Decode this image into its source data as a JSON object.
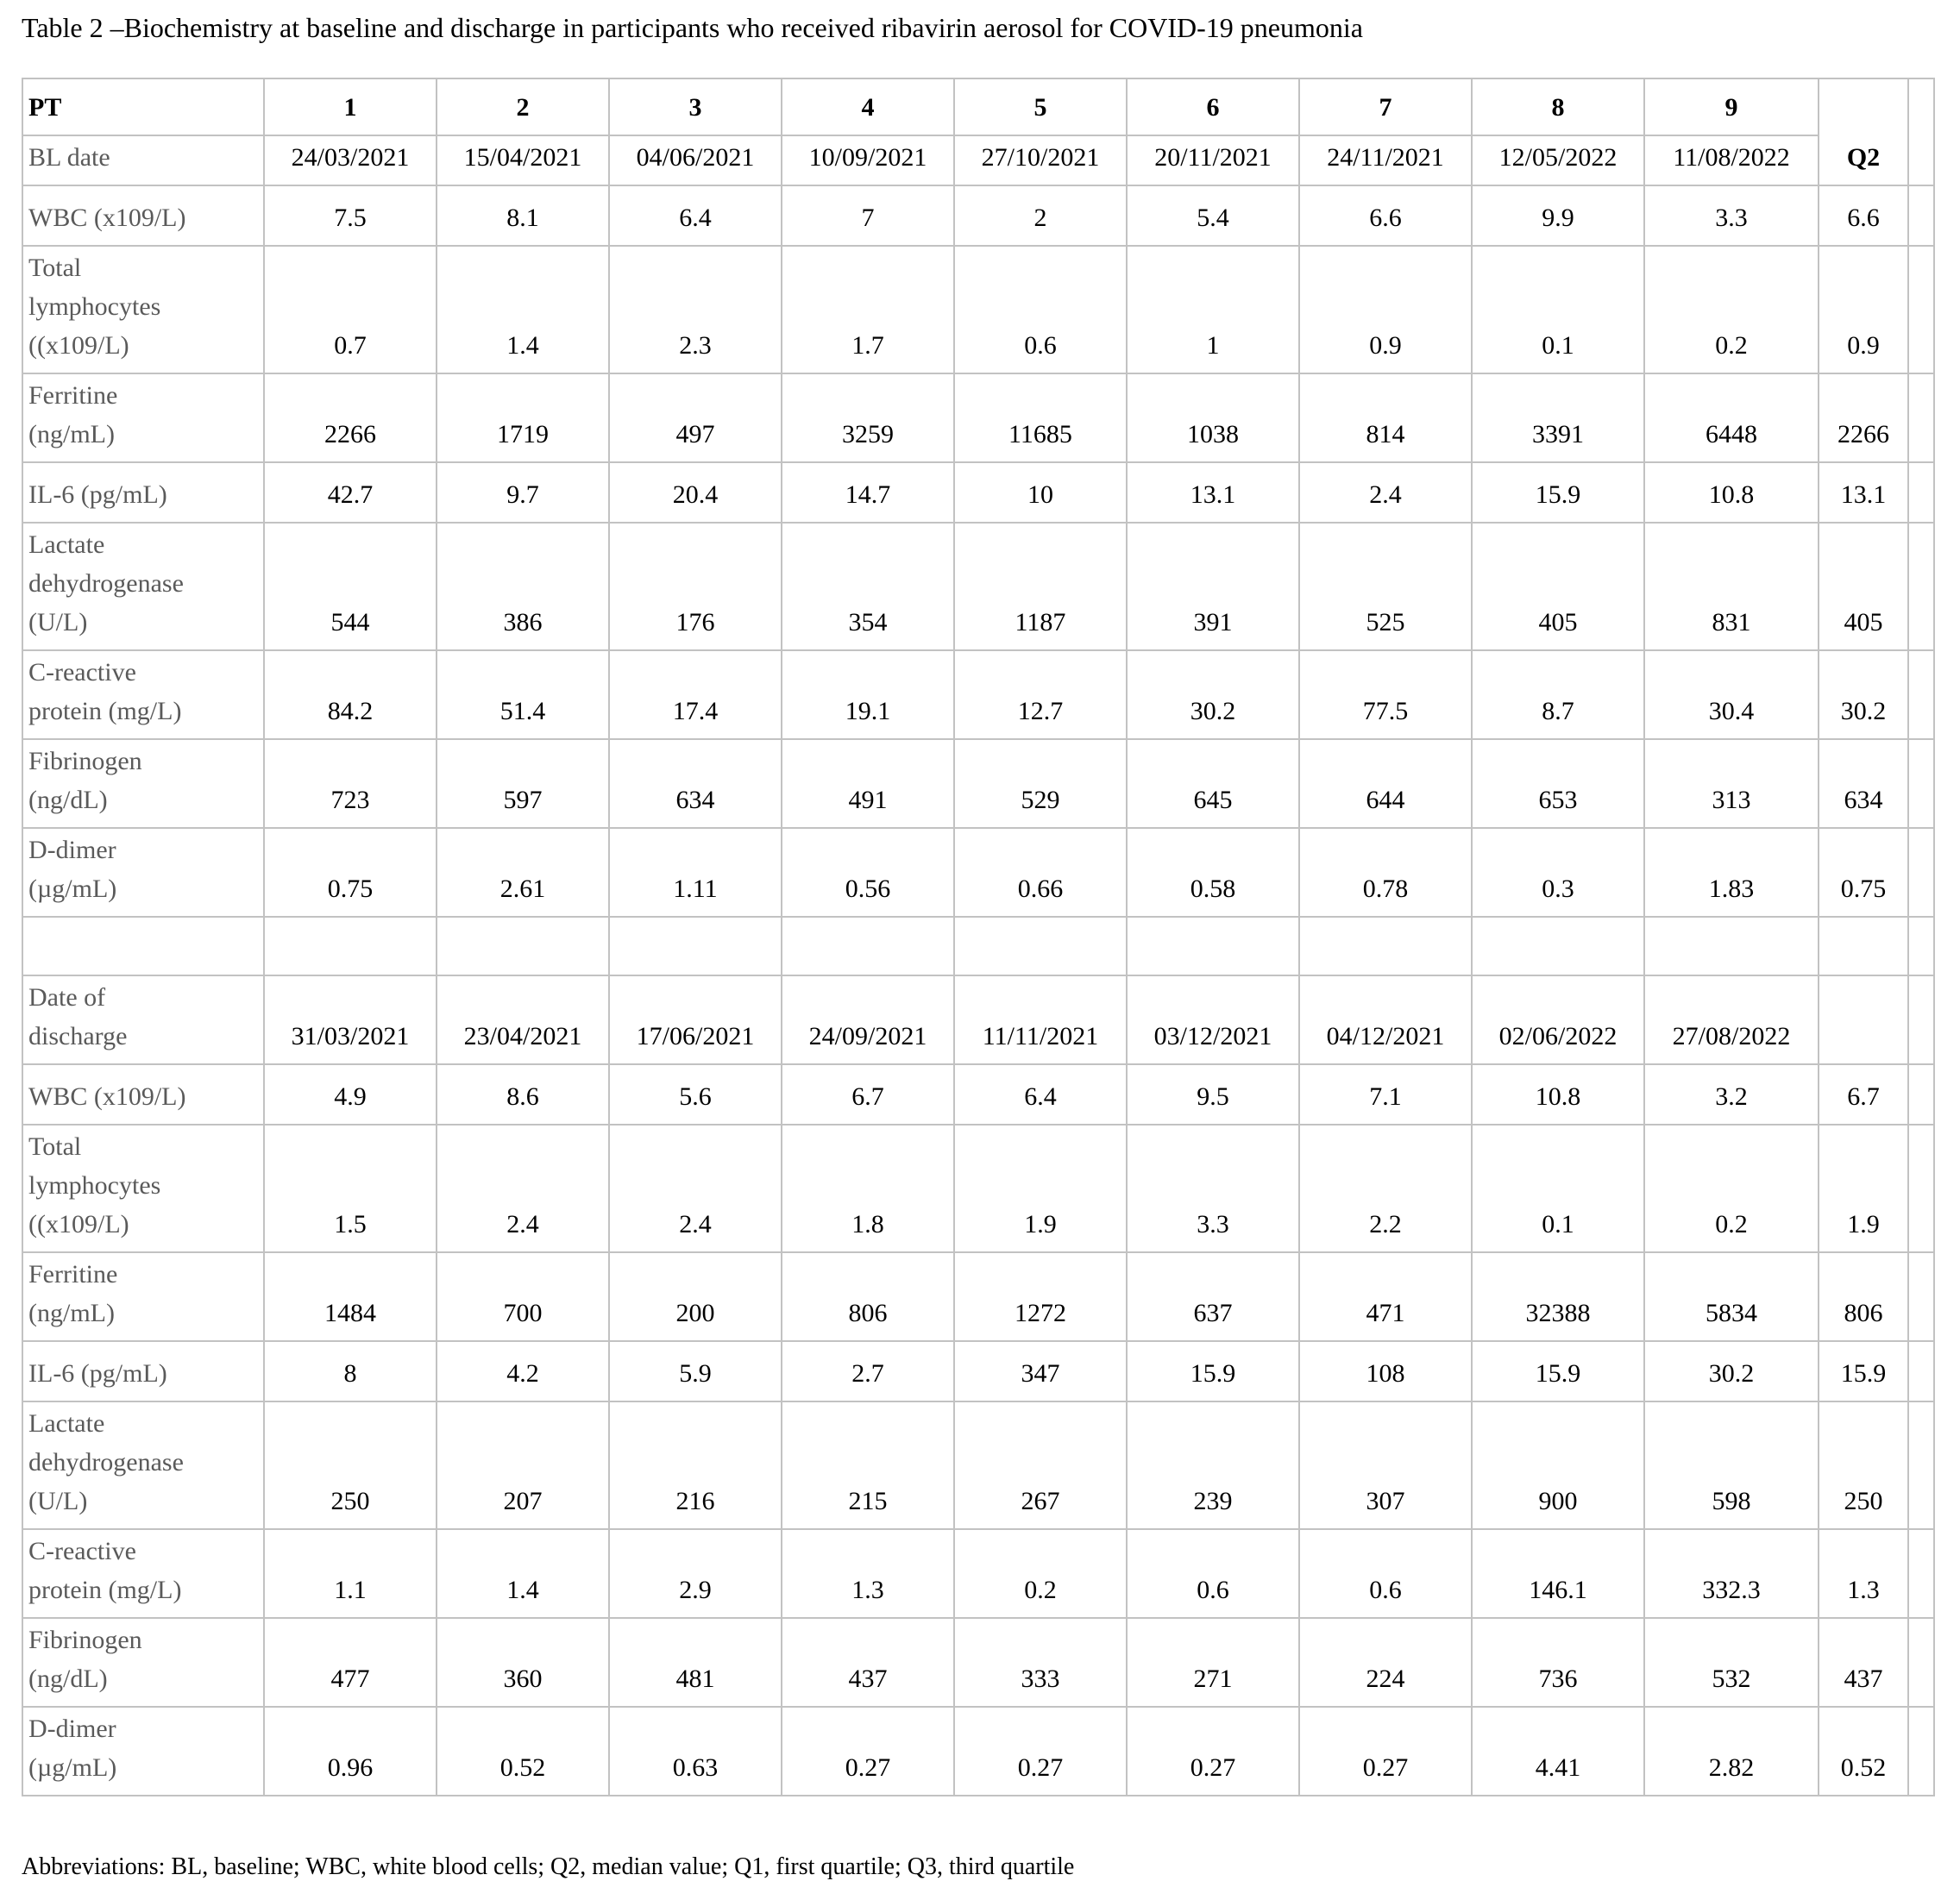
{
  "page": {
    "title": "Table 2 –Biochemistry at baseline and discharge in participants who received ribavirin aerosol for COVID-19 pneumonia",
    "footnote": "Abbreviations: BL, baseline; WBC, white blood cells; Q2, median value; Q1, first quartile; Q3, third quartile"
  },
  "table": {
    "corner_label": "PT",
    "patient_numbers": [
      "1",
      "2",
      "3",
      "4",
      "5",
      "6",
      "7",
      "8",
      "9"
    ],
    "median_label": "Q2",
    "baseline": {
      "date_row": {
        "label": "BL date",
        "dates": [
          "24/03/2021",
          "15/04/2021",
          "04/06/2021",
          "10/09/2021",
          "27/10/2021",
          "20/11/2021",
          "24/11/2021",
          "12/05/2022",
          "11/08/2022"
        ]
      },
      "metrics": [
        {
          "label": "WBC (x109/L)",
          "values": [
            "7.5",
            "8.1",
            "6.4",
            "7",
            "2",
            "5.4",
            "6.6",
            "9.9",
            "3.3"
          ],
          "q2": "6.6"
        },
        {
          "label": "Total\nlymphocytes\n((x109/L)",
          "values": [
            "0.7",
            "1.4",
            "2.3",
            "1.7",
            "0.6",
            "1",
            "0.9",
            "0.1",
            "0.2"
          ],
          "q2": "0.9"
        },
        {
          "label": "Ferritine\n(ng/mL)",
          "values": [
            "2266",
            "1719",
            "497",
            "3259",
            "11685",
            "1038",
            "814",
            "3391",
            "6448"
          ],
          "q2": "2266"
        },
        {
          "label": "IL-6 (pg/mL)",
          "values": [
            "42.7",
            "9.7",
            "20.4",
            "14.7",
            "10",
            "13.1",
            "2.4",
            "15.9",
            "10.8"
          ],
          "q2": "13.1"
        },
        {
          "label": "Lactate\ndehydrogenase\n(U/L)",
          "values": [
            "544",
            "386",
            "176",
            "354",
            "1187",
            "391",
            "525",
            "405",
            "831"
          ],
          "q2": "405"
        },
        {
          "label": "C-reactive\nprotein (mg/L)",
          "values": [
            "84.2",
            "51.4",
            "17.4",
            "19.1",
            "12.7",
            "30.2",
            "77.5",
            "8.7",
            "30.4"
          ],
          "q2": "30.2"
        },
        {
          "label": "Fibrinogen\n(ng/dL)",
          "values": [
            "723",
            "597",
            "634",
            "491",
            "529",
            "645",
            "644",
            "653",
            "313"
          ],
          "q2": "634"
        },
        {
          "label": "D-dimer\n(µg/mL)",
          "values": [
            "0.75",
            "2.61",
            "1.11",
            "0.56",
            "0.66",
            "0.58",
            "0.78",
            "0.3",
            "1.83"
          ],
          "q2": "0.75"
        }
      ]
    },
    "discharge": {
      "date_row": {
        "label": "Date of\ndischarge",
        "dates": [
          "31/03/2021",
          "23/04/2021",
          "17/06/2021",
          "24/09/2021",
          "11/11/2021",
          "03/12/2021",
          "04/12/2021",
          "02/06/2022",
          "27/08/2022"
        ],
        "q2": ""
      },
      "metrics": [
        {
          "label": "WBC (x109/L)",
          "values": [
            "4.9",
            "8.6",
            "5.6",
            "6.7",
            "6.4",
            "9.5",
            "7.1",
            "10.8",
            "3.2"
          ],
          "q2": "6.7"
        },
        {
          "label": "Total\nlymphocytes\n((x109/L)",
          "values": [
            "1.5",
            "2.4",
            "2.4",
            "1.8",
            "1.9",
            "3.3",
            "2.2",
            "0.1",
            "0.2"
          ],
          "q2": "1.9"
        },
        {
          "label": "Ferritine\n(ng/mL)",
          "values": [
            "1484",
            "700",
            "200",
            "806",
            "1272",
            "637",
            "471",
            "32388",
            "5834"
          ],
          "q2": "806"
        },
        {
          "label": "IL-6 (pg/mL)",
          "values": [
            "8",
            "4.2",
            "5.9",
            "2.7",
            "347",
            "15.9",
            "108",
            "15.9",
            "30.2"
          ],
          "q2": "15.9"
        },
        {
          "label": "Lactate\ndehydrogenase\n(U/L)",
          "values": [
            "250",
            "207",
            "216",
            "215",
            "267",
            "239",
            "307",
            "900",
            "598"
          ],
          "q2": "250"
        },
        {
          "label": "C-reactive\nprotein (mg/L)",
          "values": [
            "1.1",
            "1.4",
            "2.9",
            "1.3",
            "0.2",
            "0.6",
            "0.6",
            "146.1",
            "332.3"
          ],
          "q2": "1.3"
        },
        {
          "label": "Fibrinogen\n(ng/dL)",
          "values": [
            "477",
            "360",
            "481",
            "437",
            "333",
            "271",
            "224",
            "736",
            "532"
          ],
          "q2": "437"
        },
        {
          "label": "D-dimer\n(µg/mL)",
          "values": [
            "0.96",
            "0.52",
            "0.63",
            "0.27",
            "0.27",
            "0.27",
            "0.27",
            "4.41",
            "2.82"
          ],
          "q2": "0.52"
        }
      ]
    }
  }
}
